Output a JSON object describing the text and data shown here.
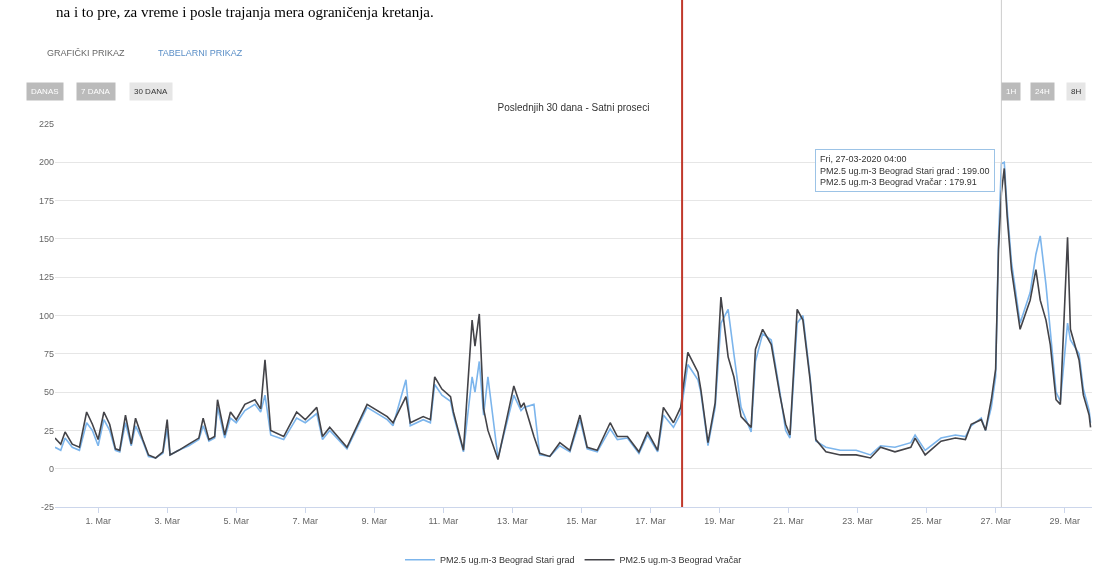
{
  "chart_data": {
    "type": "line",
    "title": "Poslednjih 30 dana - Satni proseci",
    "x": [
      "2020-02-28T18:00",
      "2020-02-28T22:00",
      "2020-02-29T01:00",
      "2020-02-29T06:00",
      "2020-02-29T11:00",
      "2020-02-29T16:00",
      "2020-02-29T20:00",
      "2020-03-01T00:00",
      "2020-03-01T04:00",
      "2020-03-01T08:00",
      "2020-03-01T12:00",
      "2020-03-01T15:00",
      "2020-03-01T19:00",
      "2020-03-01T23:00",
      "2020-03-02T02:00",
      "2020-03-02T07:00",
      "2020-03-02T11:00",
      "2020-03-02T16:00",
      "2020-03-02T21:00",
      "2020-03-03T00:00",
      "2020-03-03T02:00",
      "2020-03-03T08:00",
      "2020-03-03T15:00",
      "2020-03-03T22:00",
      "2020-03-04T01:00",
      "2020-03-04T05:00",
      "2020-03-04T09:00",
      "2020-03-04T11:00",
      "2020-03-04T16:00",
      "2020-03-04T20:00",
      "2020-03-05T00:00",
      "2020-03-05T06:00",
      "2020-03-05T13:00",
      "2020-03-05T17:00",
      "2020-03-05T20:00",
      "2020-03-06T00:00",
      "2020-03-06T09:00",
      "2020-03-06T18:00",
      "2020-03-07T00:00",
      "2020-03-07T08:00",
      "2020-03-07T12:00",
      "2020-03-07T17:00",
      "2020-03-08T05:00",
      "2020-03-08T19:00",
      "2020-03-09T09:00",
      "2020-03-09T13:00",
      "2020-03-09T22:00",
      "2020-03-10T01:00",
      "2020-03-10T10:00",
      "2020-03-10T15:00",
      "2020-03-10T18:00",
      "2020-03-10T23:00",
      "2020-03-11T05:00",
      "2020-03-11T07:00",
      "2020-03-11T14:00",
      "2020-03-11T20:00",
      "2020-03-11T22:00",
      "2020-03-12T01:00",
      "2020-03-12T04:00",
      "2020-03-12T07:00",
      "2020-03-12T14:00",
      "2020-03-13T01:00",
      "2020-03-13T06:00",
      "2020-03-13T08:00",
      "2020-03-13T15:00",
      "2020-03-13T19:00",
      "2020-03-14T02:00",
      "2020-03-14T09:00",
      "2020-03-14T16:00",
      "2020-03-14T23:00",
      "2020-03-15T04:00",
      "2020-03-15T11:00",
      "2020-03-15T20:00",
      "2020-03-16T01:00",
      "2020-03-16T08:00",
      "2020-03-16T16:00",
      "2020-03-16T22:00",
      "2020-03-17T05:00",
      "2020-03-17T09:00",
      "2020-03-17T16:00",
      "2020-03-17T21:00",
      "2020-03-18T02:00",
      "2020-03-18T09:00",
      "2020-03-18T11:00",
      "2020-03-18T16:00",
      "2020-03-18T21:00",
      "2020-03-19T01:00",
      "2020-03-19T06:00",
      "2020-03-19T10:00",
      "2020-03-19T15:00",
      "2020-03-19T22:00",
      "2020-03-20T01:00",
      "2020-03-20T06:00",
      "2020-03-20T12:00",
      "2020-03-20T18:00",
      "2020-03-20T22:00",
      "2020-03-21T01:00",
      "2020-03-21T06:00",
      "2020-03-21T10:00",
      "2020-03-21T15:00",
      "2020-03-21T19:00",
      "2020-03-22T02:00",
      "2020-03-22T12:00",
      "2020-03-22T23:00",
      "2020-03-23T09:00",
      "2020-03-23T16:00",
      "2020-03-24T02:00",
      "2020-03-24T13:00",
      "2020-03-24T16:00",
      "2020-03-24T23:00",
      "2020-03-25T10:00",
      "2020-03-25T20:00",
      "2020-03-26T03:00",
      "2020-03-26T07:00",
      "2020-03-26T14:00",
      "2020-03-26T17:00",
      "2020-03-26T21:00",
      "2020-03-27T00:00",
      "2020-03-27T02:00",
      "2020-03-27T04:00",
      "2020-03-27T06:00",
      "2020-03-27T08:00",
      "2020-03-27T11:00",
      "2020-03-27T17:00",
      "2020-03-28T00:00",
      "2020-03-28T04:00",
      "2020-03-28T07:00",
      "2020-03-28T11:00",
      "2020-03-28T14:00",
      "2020-03-28T18:00",
      "2020-03-28T21:00",
      "2020-03-29T02:00",
      "2020-03-29T04:00",
      "2020-03-29T10:00",
      "2020-03-29T13:00",
      "2020-03-29T17:00",
      "2020-03-29T18:00"
    ],
    "series": [
      {
        "name": "PM2.5 ug.m-3 Beograd Stari grad",
        "color": "#7cb5ec",
        "values": [
          14,
          12,
          20,
          14,
          12,
          30,
          25,
          15,
          32,
          25,
          12,
          11,
          30,
          15,
          28,
          18,
          8,
          7,
          10,
          26,
          9,
          12,
          15,
          19,
          28,
          18,
          20,
          40,
          20,
          33,
          30,
          38,
          42,
          37,
          48,
          22,
          19,
          33,
          30,
          36,
          19,
          25,
          13,
          40,
          32,
          28,
          58,
          28,
          32,
          30,
          55,
          48,
          44,
          35,
          11,
          60,
          50,
          70,
          35,
          60,
          7,
          48,
          38,
          40,
          42,
          9,
          8,
          15,
          11,
          32,
          13,
          11,
          26,
          19,
          20,
          10,
          22,
          11,
          35,
          27,
          36,
          68,
          58,
          50,
          15,
          40,
          95,
          104,
          75,
          40,
          24,
          70,
          88,
          84,
          50,
          25,
          20,
          95,
          100,
          60,
          18,
          14,
          12,
          12,
          9,
          15,
          14,
          17,
          22,
          12,
          20,
          22,
          21,
          28,
          33,
          25,
          40,
          60,
          150,
          199,
          200,
          170,
          135,
          95,
          115,
          140,
          152,
          120,
          90,
          50,
          44,
          95,
          84,
          75,
          52,
          38,
          30
        ]
      },
      {
        "name": "PM2.5 ug.m-3 Beograd Vračar",
        "color": "#434348",
        "values": [
          20,
          16,
          24,
          16,
          14,
          37,
          29,
          19,
          37,
          29,
          13,
          12,
          35,
          16,
          33,
          19,
          9,
          7,
          11,
          32,
          9,
          12,
          16,
          20,
          33,
          19,
          21,
          45,
          22,
          37,
          32,
          42,
          45,
          39,
          71,
          25,
          21,
          37,
          32,
          40,
          21,
          27,
          14,
          42,
          34,
          30,
          47,
          30,
          34,
          32,
          60,
          52,
          47,
          37,
          12,
          97,
          80,
          101,
          39,
          25,
          6,
          54,
          40,
          43,
          21,
          10,
          8,
          17,
          12,
          35,
          14,
          12,
          30,
          21,
          21,
          11,
          24,
          12,
          40,
          30,
          40,
          76,
          63,
          52,
          17,
          43,
          112,
          73,
          60,
          34,
          27,
          78,
          91,
          81,
          48,
          29,
          22,
          104,
          97,
          58,
          19,
          11,
          9,
          9,
          7,
          14,
          11,
          14,
          20,
          9,
          18,
          20,
          19,
          29,
          32,
          25,
          45,
          65,
          143,
          180,
          196,
          165,
          130,
          91,
          110,
          130,
          110,
          97,
          81,
          45,
          42,
          151,
          91,
          71,
          48,
          35,
          27
        ]
      }
    ],
    "xlim": [
      "2020-02-28T18:00",
      "2020-03-29T19:00"
    ],
    "xticks": [
      {
        "value": "2020-03-01",
        "label": "1. Mar"
      },
      {
        "value": "2020-03-03",
        "label": "3. Mar"
      },
      {
        "value": "2020-03-05",
        "label": "5. Mar"
      },
      {
        "value": "2020-03-07",
        "label": "7. Mar"
      },
      {
        "value": "2020-03-09",
        "label": "9. Mar"
      },
      {
        "value": "2020-03-11",
        "label": "11. Mar"
      },
      {
        "value": "2020-03-13",
        "label": "13. Mar"
      },
      {
        "value": "2020-03-15",
        "label": "15. Mar"
      },
      {
        "value": "2020-03-17",
        "label": "17. Mar"
      },
      {
        "value": "2020-03-19",
        "label": "19. Mar"
      },
      {
        "value": "2020-03-21",
        "label": "21. Mar"
      },
      {
        "value": "2020-03-23",
        "label": "23. Mar"
      },
      {
        "value": "2020-03-25",
        "label": "25. Mar"
      },
      {
        "value": "2020-03-27",
        "label": "27. Mar"
      },
      {
        "value": "2020-03-29",
        "label": "29. Mar"
      }
    ],
    "ylim": [
      -25,
      225
    ],
    "yticks": [
      -25,
      0,
      25,
      50,
      75,
      100,
      125,
      150,
      175,
      200,
      225
    ],
    "grid": "y",
    "legend": "bottom",
    "marker": "none",
    "line_style": "solid",
    "ref_lines": [
      {
        "axis": "x",
        "value": "2020-03-17T22:00",
        "label": null,
        "color": "#c0392b"
      },
      {
        "axis": "x",
        "value": "2020-03-27T04:00",
        "label": null,
        "color": "#cccccc"
      }
    ],
    "annotations": [
      "na i to pre, za vreme i posle trajanja mera ograničenja kretanja.",
      "GRAFIČKI PRIKAZ",
      "TABELARNI PRIKAZ",
      "DANAS",
      "7 DANA",
      "30 DANA",
      "1H",
      "24H",
      "8H",
      {
        "text": "Fri, 27-03-2020 04:00\nPM2.5 ug.m-3 Beograd Stari grad : 199.00\nPM2.5 ug.m-3 Beograd Vračar : 179.91",
        "x": "2020-03-27T04:00",
        "y": 180
      }
    ]
  }
}
